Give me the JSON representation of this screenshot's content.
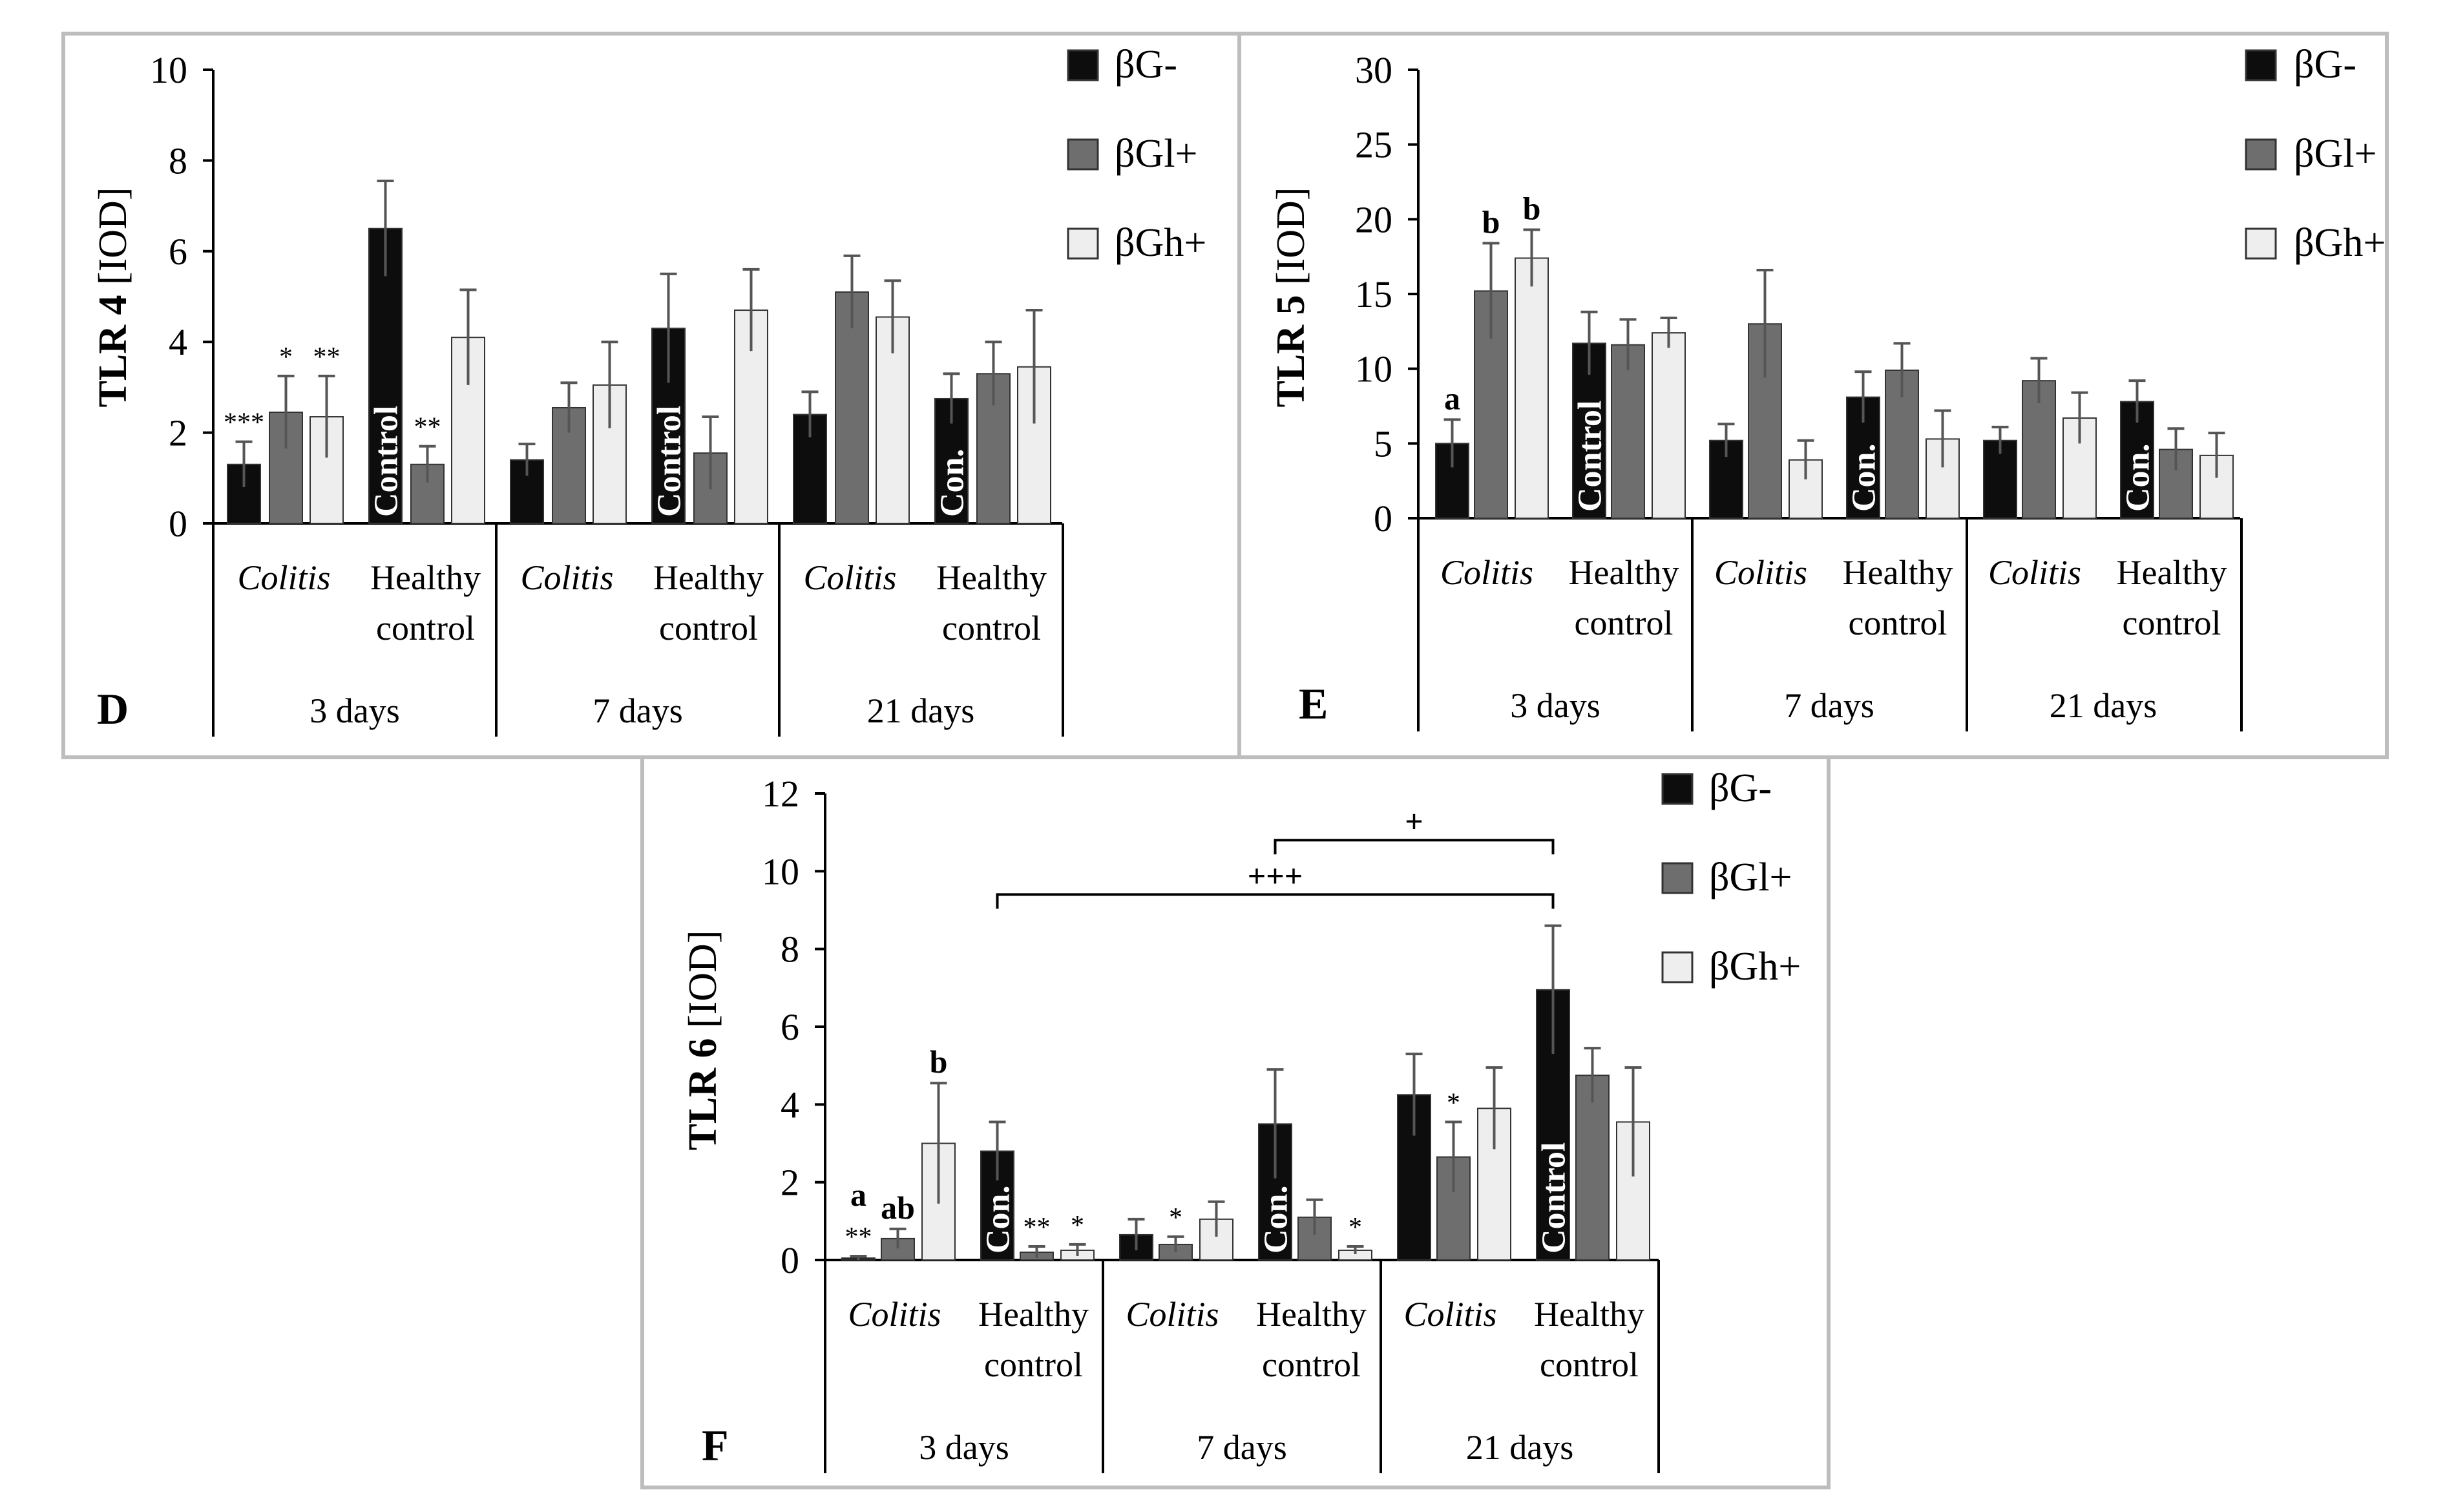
{
  "legend": [
    "βG-",
    "βGl+",
    "βGh+"
  ],
  "colors": {
    "bG-": "#0d0d0d",
    "bGl+": "#6e6e6e",
    "bGh+": "#eeeeee",
    "frame": "#bdbdbd"
  },
  "chart_data": [
    {
      "panel": "D",
      "type": "bar",
      "ylabel_bold": "TLR 4",
      "ylabel_unit": "[IOD]",
      "ylim": [
        0,
        10
      ],
      "yticks": [
        "0",
        "2",
        "4",
        "6",
        "8",
        "10"
      ],
      "days": [
        "3 days",
        "7 days",
        "21 days"
      ],
      "conditions": [
        "Colitis",
        "Healthy",
        "control"
      ],
      "series": [
        {
          "name": "βG-",
          "values": [
            1.3,
            6.5,
            1.4,
            4.3,
            2.4,
            2.75
          ],
          "errors": [
            0.5,
            1.05,
            0.35,
            1.2,
            0.5,
            0.55
          ]
        },
        {
          "name": "βGl+",
          "values": [
            2.45,
            1.3,
            2.55,
            1.55,
            5.1,
            3.3
          ],
          "errors": [
            0.8,
            0.4,
            0.55,
            0.8,
            0.8,
            0.7
          ]
        },
        {
          "name": "βGh+",
          "values": [
            2.35,
            4.1,
            3.05,
            4.7,
            4.55,
            3.45
          ],
          "errors": [
            0.9,
            1.05,
            0.95,
            0.9,
            0.8,
            1.25
          ]
        }
      ],
      "bar_labels": [
        {
          "group": 1,
          "text": "Control"
        },
        {
          "group": 3,
          "text": "Control"
        },
        {
          "group": 5,
          "text": "Con."
        }
      ],
      "annotations": [
        {
          "group": 0,
          "series": 0,
          "text": "***",
          "bold": false
        },
        {
          "group": 0,
          "series": 1,
          "text": "*",
          "bold": false
        },
        {
          "group": 0,
          "series": 2,
          "text": "**",
          "bold": false
        },
        {
          "group": 1,
          "series": 1,
          "text": "**",
          "bold": false
        }
      ]
    },
    {
      "panel": "E",
      "type": "bar",
      "ylabel_bold": "TLR 5",
      "ylabel_unit": "[IOD]",
      "ylim": [
        0,
        30
      ],
      "yticks": [
        "0",
        "5",
        "10",
        "15",
        "20",
        "25",
        "30"
      ],
      "days": [
        "3 days",
        "7 days",
        "21 days"
      ],
      "conditions": [
        "Colitis",
        "Healthy",
        "control"
      ],
      "series": [
        {
          "name": "βG-",
          "values": [
            5.0,
            11.7,
            5.2,
            8.1,
            5.2,
            7.8
          ],
          "errors": [
            1.6,
            2.1,
            1.1,
            1.7,
            0.9,
            1.4
          ]
        },
        {
          "name": "βGl+",
          "values": [
            15.2,
            11.6,
            13.0,
            9.9,
            9.2,
            4.6
          ],
          "errors": [
            3.2,
            1.7,
            3.6,
            1.8,
            1.5,
            1.4
          ]
        },
        {
          "name": "βGh+",
          "values": [
            17.4,
            12.4,
            3.9,
            5.3,
            6.7,
            4.2
          ],
          "errors": [
            1.9,
            1.0,
            1.3,
            1.9,
            1.7,
            1.5
          ]
        }
      ],
      "bar_labels": [
        {
          "group": 1,
          "text": "Control"
        },
        {
          "group": 3,
          "text": "Con."
        },
        {
          "group": 5,
          "text": "Con."
        }
      ],
      "annotations": [
        {
          "group": 0,
          "series": 0,
          "text": "a",
          "bold": true
        },
        {
          "group": 0,
          "series": 1,
          "text": "b",
          "bold": true
        },
        {
          "group": 0,
          "series": 2,
          "text": "b",
          "bold": true
        }
      ]
    },
    {
      "panel": "F",
      "type": "bar",
      "ylabel_bold": "TLR 6",
      "ylabel_unit": "[IOD]",
      "ylim": [
        0,
        12
      ],
      "yticks": [
        "0",
        "2",
        "4",
        "6",
        "8",
        "10",
        "12"
      ],
      "days": [
        "3 days",
        "7 days",
        "21 days"
      ],
      "conditions": [
        "Colitis",
        "Healthy",
        "control"
      ],
      "series": [
        {
          "name": "βG-",
          "values": [
            0.05,
            2.8,
            0.65,
            3.5,
            4.25,
            6.95
          ],
          "errors": [
            0.05,
            0.75,
            0.4,
            1.4,
            1.05,
            1.65
          ]
        },
        {
          "name": "βGl+",
          "values": [
            0.55,
            0.2,
            0.4,
            1.1,
            2.65,
            4.75
          ],
          "errors": [
            0.25,
            0.15,
            0.2,
            0.45,
            0.9,
            0.7
          ]
        },
        {
          "name": "βGh+",
          "values": [
            3.0,
            0.25,
            1.05,
            0.25,
            3.9,
            3.55
          ],
          "errors": [
            1.55,
            0.15,
            0.45,
            0.1,
            1.05,
            1.4
          ]
        }
      ],
      "bar_labels": [
        {
          "group": 1,
          "text": "Con."
        },
        {
          "group": 3,
          "text": "Con."
        },
        {
          "group": 5,
          "text": "Control"
        }
      ],
      "annotations": [
        {
          "group": 0,
          "series": 0,
          "text": "**",
          "bold": false
        },
        {
          "group": 0,
          "series": 0,
          "text": "a",
          "bold": true,
          "stack": 1
        },
        {
          "group": 0,
          "series": 1,
          "text": "ab",
          "bold": true
        },
        {
          "group": 0,
          "series": 2,
          "text": "b",
          "bold": true
        },
        {
          "group": 1,
          "series": 1,
          "text": "**",
          "bold": false
        },
        {
          "group": 1,
          "series": 2,
          "text": "*",
          "bold": false
        },
        {
          "group": 2,
          "series": 1,
          "text": "*",
          "bold": false
        },
        {
          "group": 3,
          "series": 2,
          "text": "*",
          "bold": false
        },
        {
          "group": 4,
          "series": 1,
          "text": "*",
          "bold": false
        }
      ],
      "brackets": [
        {
          "from_group": 3,
          "to_group": 5,
          "y": 10.8,
          "text": "+"
        },
        {
          "from_group": 1,
          "to_group": 5,
          "y": 9.4,
          "text": "+++"
        }
      ]
    }
  ]
}
